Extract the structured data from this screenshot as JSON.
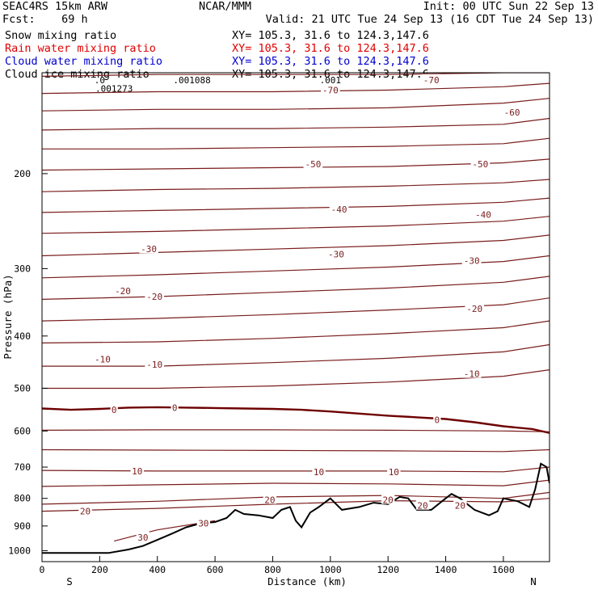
{
  "header": {
    "model": "SEAC4RS 15km ARW",
    "center": "NCAR/MMM",
    "init": "Init: 00 UTC Sun 22 Sep 13",
    "fcst": "Fcst:    69 h",
    "valid": "Valid: 21 UTC Tue 24 Sep 13 (16 CDT Tue 24 Sep 13)"
  },
  "legend": [
    {
      "label": "Snow mixing ratio",
      "xy": "XY= 105.3, 31.6 to 124.3,147.6",
      "color": "#000000"
    },
    {
      "label": "Rain water mixing ratio",
      "xy": "XY= 105.3, 31.6 to 124.3,147.6",
      "color": "#e00000"
    },
    {
      "label": "Cloud water mixing ratio",
      "xy": "XY= 105.3, 31.6 to 124.3,147.6",
      "color": "#0000d0"
    },
    {
      "label": "Cloud ice mixing ratio",
      "xy": "XY= 105.3, 31.6 to 124.3,147.6",
      "color": "#000000"
    }
  ],
  "chart_data": {
    "type": "line",
    "xlabel": "Distance (km)",
    "ylabel": "Pressure (hPa)",
    "x_ticks": [
      0,
      200,
      400,
      600,
      800,
      1000,
      1200,
      1400,
      1600
    ],
    "y_ticks": [
      200,
      300,
      400,
      500,
      600,
      700,
      800,
      900,
      1000
    ],
    "xlim": [
      0,
      1760
    ],
    "ylim": [
      1048,
      130
    ],
    "y_scale": "log",
    "endpoints": {
      "left": "S",
      "right": "N"
    },
    "colors": {
      "isotherm": "#7a1c1c",
      "freezing": "#6e0000",
      "terrain": "#000000"
    },
    "freezing_level": {
      "name": "0",
      "x": [
        0,
        100,
        200,
        300,
        400,
        500,
        600,
        700,
        800,
        900,
        1000,
        1100,
        1200,
        1300,
        1400,
        1500,
        1600,
        1700,
        1760
      ],
      "y": [
        545,
        548,
        546,
        543,
        542,
        543,
        544,
        545,
        546,
        548,
        552,
        557,
        562,
        566,
        570,
        578,
        588,
        595,
        605
      ]
    },
    "isotherms": [
      {
        "level": "-70",
        "x": [
          0,
          400,
          800,
          1200,
          1600,
          1760
        ],
        "y": [
          132,
          131,
          131,
          131,
          130,
          130
        ]
      },
      {
        "level": "",
        "x": [
          0,
          400,
          800,
          1200,
          1600,
          1760
        ],
        "y": [
          142,
          141,
          141,
          140,
          138,
          136
        ]
      },
      {
        "level": "-60",
        "x": [
          0,
          400,
          800,
          1200,
          1600,
          1760
        ],
        "y": [
          153,
          152,
          152,
          151,
          148,
          145
        ]
      },
      {
        "level": "",
        "x": [
          0,
          400,
          800,
          1200,
          1600,
          1760
        ],
        "y": [
          166,
          165,
          165,
          164,
          162,
          158
        ]
      },
      {
        "level": "",
        "x": [
          0,
          400,
          800,
          1200,
          1600,
          1760
        ],
        "y": [
          180,
          180,
          179,
          178,
          176,
          172
        ]
      },
      {
        "level": "-50",
        "x": [
          0,
          400,
          800,
          1200,
          1600,
          1760
        ],
        "y": [
          197,
          196,
          195,
          194,
          191,
          188
        ]
      },
      {
        "level": "",
        "x": [
          0,
          400,
          800,
          1200,
          1600,
          1760
        ],
        "y": [
          216,
          214,
          213,
          211,
          208,
          205
        ]
      },
      {
        "level": "-40",
        "x": [
          0,
          400,
          800,
          1200,
          1600,
          1760
        ],
        "y": [
          236,
          234,
          232,
          230,
          226,
          222
        ]
      },
      {
        "level": "",
        "x": [
          0,
          400,
          800,
          1200,
          1600,
          1760
        ],
        "y": [
          258,
          256,
          253,
          250,
          245,
          240
        ]
      },
      {
        "level": "-30",
        "x": [
          0,
          400,
          800,
          1200,
          1600,
          1760
        ],
        "y": [
          284,
          280,
          276,
          272,
          266,
          260
        ]
      },
      {
        "level": "",
        "x": [
          0,
          400,
          800,
          1200,
          1600,
          1760
        ],
        "y": [
          312,
          308,
          303,
          298,
          291,
          284
        ]
      },
      {
        "level": "-20",
        "x": [
          0,
          400,
          800,
          1200,
          1600,
          1760
        ],
        "y": [
          342,
          338,
          332,
          326,
          318,
          310
        ]
      },
      {
        "level": "",
        "x": [
          0,
          400,
          800,
          1200,
          1600,
          1760
        ],
        "y": [
          375,
          371,
          365,
          358,
          350,
          340
        ]
      },
      {
        "level": "-10",
        "x": [
          0,
          400,
          800,
          1200,
          1600,
          1760
        ],
        "y": [
          412,
          410,
          404,
          396,
          386,
          375
        ]
      },
      {
        "level": "",
        "x": [
          0,
          400,
          800,
          1200,
          1600,
          1760
        ],
        "y": [
          455,
          455,
          448,
          440,
          428,
          415
        ]
      },
      {
        "level": "",
        "x": [
          0,
          400,
          800,
          1200,
          1600,
          1760
        ],
        "y": [
          500,
          500,
          495,
          487,
          475,
          462
        ]
      },
      {
        "level": "",
        "x": [
          0,
          400,
          800,
          1200,
          1600,
          1760
        ],
        "y": [
          598,
          597,
          597,
          598,
          600,
          602
        ]
      },
      {
        "level": "",
        "x": [
          0,
          400,
          800,
          1200,
          1600,
          1760
        ],
        "y": [
          650,
          651,
          652,
          653,
          655,
          650
        ]
      },
      {
        "level": "10",
        "x": [
          0,
          400,
          800,
          1200,
          1600,
          1760
        ],
        "y": [
          710,
          712,
          712,
          712,
          714,
          700
        ]
      },
      {
        "level": "",
        "x": [
          0,
          400,
          800,
          1200,
          1600,
          1760
        ],
        "y": [
          760,
          755,
          750,
          752,
          758,
          740
        ]
      },
      {
        "level": "20",
        "x": [
          0,
          400,
          800,
          1200,
          1600,
          1760
        ],
        "y": [
          820,
          810,
          795,
          790,
          800,
          780
        ]
      },
      {
        "level": "",
        "x": [
          0,
          400,
          800,
          1200,
          1600,
          1760
        ],
        "y": [
          845,
          835,
          820,
          808,
          812,
          800
        ]
      },
      {
        "level": "30",
        "x": [
          250,
          400,
          600
        ],
        "y": [
          960,
          915,
          880
        ]
      }
    ],
    "terrain": {
      "name": "terrain",
      "x": [
        0,
        100,
        200,
        230,
        300,
        350,
        400,
        450,
        500,
        550,
        600,
        640,
        670,
        700,
        750,
        800,
        830,
        860,
        880,
        900,
        930,
        960,
        1000,
        1040,
        1100,
        1150,
        1200,
        1240,
        1270,
        1300,
        1350,
        1400,
        1420,
        1450,
        1500,
        1550,
        1580,
        1600,
        1650,
        1690,
        1710,
        1730,
        1750,
        1760
      ],
      "y": [
        1010,
        1010,
        1010,
        1010,
        995,
        980,
        955,
        930,
        905,
        890,
        885,
        870,
        840,
        855,
        860,
        870,
        840,
        830,
        880,
        905,
        850,
        830,
        800,
        840,
        830,
        815,
        820,
        795,
        800,
        840,
        840,
        800,
        785,
        800,
        840,
        860,
        845,
        800,
        810,
        830,
        770,
        690,
        700,
        750
      ]
    },
    "contour_labels": [
      {
        "text": "-70",
        "x": 1000,
        "y": 140
      },
      {
        "text": "-70",
        "x": 1350,
        "y": 134
      },
      {
        "text": "-60",
        "x": 1630,
        "y": 154
      },
      {
        "text": "-50",
        "x": 940,
        "y": 192
      },
      {
        "text": "-50",
        "x": 1520,
        "y": 192
      },
      {
        "text": "-40",
        "x": 1030,
        "y": 233
      },
      {
        "text": "-40",
        "x": 1530,
        "y": 238
      },
      {
        "text": "-30",
        "x": 370,
        "y": 276
      },
      {
        "text": "-30",
        "x": 1020,
        "y": 282
      },
      {
        "text": "-30",
        "x": 1490,
        "y": 290
      },
      {
        "text": "-20",
        "x": 280,
        "y": 330
      },
      {
        "text": "-20",
        "x": 390,
        "y": 338
      },
      {
        "text": "-20",
        "x": 1500,
        "y": 356
      },
      {
        "text": "-10",
        "x": 210,
        "y": 442
      },
      {
        "text": "-10",
        "x": 390,
        "y": 452
      },
      {
        "text": "-10",
        "x": 1490,
        "y": 470
      },
      {
        "text": "0",
        "x": 250,
        "y": 548
      },
      {
        "text": "0",
        "x": 460,
        "y": 543
      },
      {
        "text": "0",
        "x": 1370,
        "y": 572
      },
      {
        "text": "10",
        "x": 330,
        "y": 712
      },
      {
        "text": "10",
        "x": 960,
        "y": 715
      },
      {
        "text": "10",
        "x": 1220,
        "y": 715
      },
      {
        "text": "20",
        "x": 150,
        "y": 845
      },
      {
        "text": "20",
        "x": 790,
        "y": 805
      },
      {
        "text": "20",
        "x": 1200,
        "y": 805
      },
      {
        "text": "20",
        "x": 1320,
        "y": 825
      },
      {
        "text": "20",
        "x": 1450,
        "y": 825
      },
      {
        "text": "30",
        "x": 350,
        "y": 945
      },
      {
        "text": "30",
        "x": 560,
        "y": 890
      }
    ],
    "top_labels": [
      {
        "text": ".001273",
        "x": 250,
        "y": 139
      },
      {
        "text": ".001088",
        "x": 520,
        "y": 134
      },
      {
        "text": ".0",
        "x": 200,
        "y": 134
      },
      {
        "text": ".001",
        "x": 1000,
        "y": 134
      }
    ]
  }
}
